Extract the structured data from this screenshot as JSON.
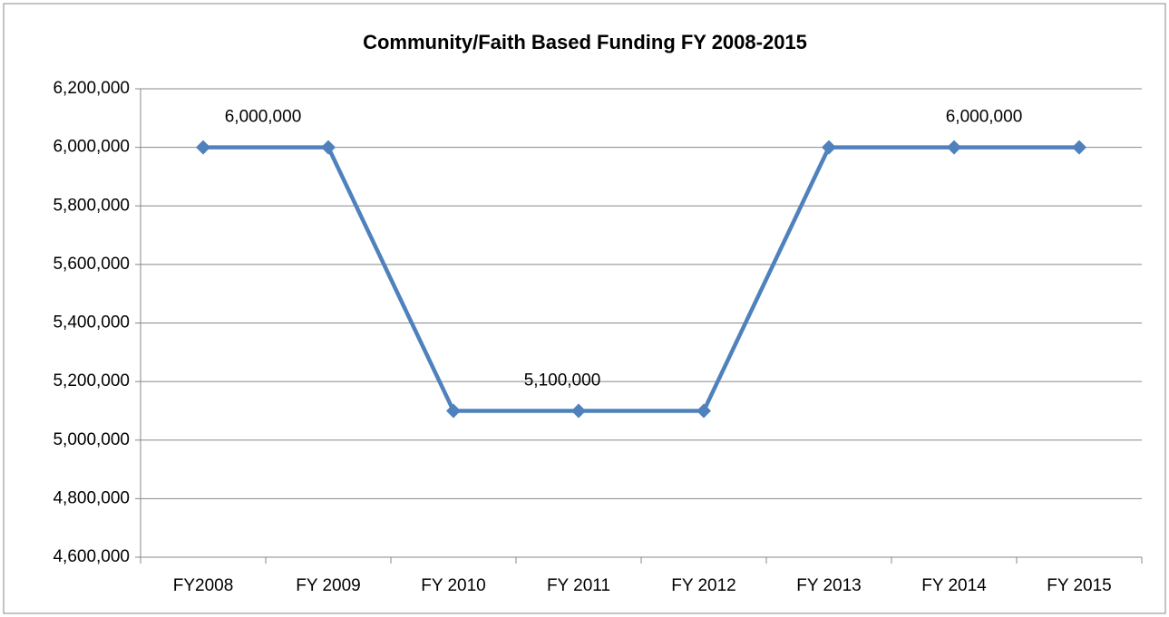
{
  "chart_data": {
    "type": "line",
    "title": "Community/Faith Based Funding FY 2008-2015",
    "categories": [
      "FY2008",
      "FY 2009",
      "FY 2010",
      "FY 2011",
      "FY 2012",
      "FY 2013",
      "FY 2014",
      "FY 2015"
    ],
    "series": [
      {
        "name": "Funding",
        "color": "#4f81bd",
        "values": [
          6000000,
          6000000,
          5100000,
          5100000,
          5100000,
          6000000,
          6000000,
          6000000
        ]
      }
    ],
    "value_labels": [
      "6,000,000",
      null,
      null,
      "5,100,000",
      null,
      null,
      "6,000,000",
      null
    ],
    "ylim": [
      4600000,
      6200000
    ],
    "yticks": [
      {
        "value": 4600000,
        "label": "4,600,000"
      },
      {
        "value": 4800000,
        "label": "4,800,000"
      },
      {
        "value": 5000000,
        "label": "5,000,000"
      },
      {
        "value": 5200000,
        "label": "5,200,000"
      },
      {
        "value": 5400000,
        "label": "5,400,000"
      },
      {
        "value": 5600000,
        "label": "5,600,000"
      },
      {
        "value": 5800000,
        "label": "5,800,000"
      },
      {
        "value": 6000000,
        "label": "6,000,000"
      },
      {
        "value": 6200000,
        "label": "6,200,000"
      }
    ],
    "grid": true
  }
}
